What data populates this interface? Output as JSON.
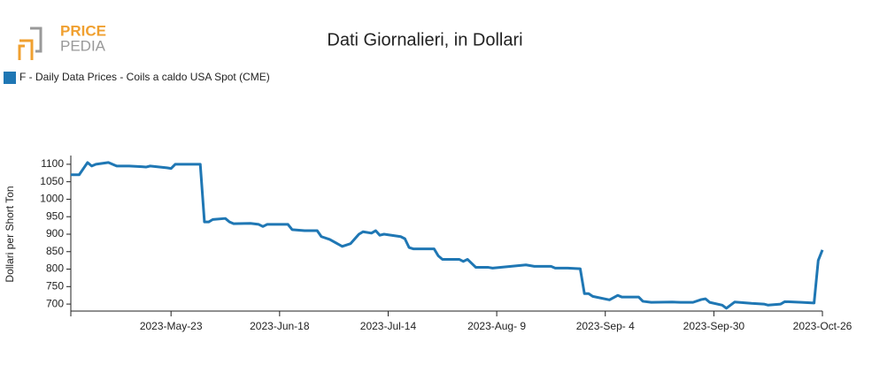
{
  "logo": {
    "top": "PRICE",
    "bottom": "PEDIA"
  },
  "chart_data": {
    "type": "line",
    "title": "Dati Giornalieri, in Dollari",
    "y_label": "Dollari per Short Ton",
    "x": [
      "2023-04-29",
      "2023-05-01",
      "2023-05-03",
      "2023-05-04",
      "2023-05-05",
      "2023-05-08",
      "2023-05-10",
      "2023-05-13",
      "2023-05-16",
      "2023-05-17",
      "2023-05-18",
      "2023-05-22",
      "2023-05-23",
      "2023-05-24",
      "2023-05-30",
      "2023-05-31",
      "2023-06-01",
      "2023-06-02",
      "2023-06-05",
      "2023-06-06",
      "2023-06-07",
      "2023-06-11",
      "2023-06-13",
      "2023-06-14",
      "2023-06-15",
      "2023-06-20",
      "2023-06-21",
      "2023-06-24",
      "2023-06-27",
      "2023-06-28",
      "2023-06-30",
      "2023-07-03",
      "2023-07-05",
      "2023-07-07",
      "2023-07-08",
      "2023-07-10",
      "2023-07-11",
      "2023-07-12",
      "2023-07-13",
      "2023-07-17",
      "2023-07-18",
      "2023-07-19",
      "2023-07-20",
      "2023-07-25",
      "2023-07-26",
      "2023-07-27",
      "2023-07-31",
      "2023-08-01",
      "2023-08-02",
      "2023-08-04",
      "2023-08-07",
      "2023-08-08",
      "2023-08-16",
      "2023-08-18",
      "2023-08-22",
      "2023-08-23",
      "2023-08-26",
      "2023-08-29",
      "2023-08-30",
      "2023-08-31",
      "2023-09-01",
      "2023-09-05",
      "2023-09-07",
      "2023-09-08",
      "2023-09-12",
      "2023-09-13",
      "2023-09-15",
      "2023-09-20",
      "2023-09-22",
      "2023-09-25",
      "2023-09-27",
      "2023-09-28",
      "2023-09-29",
      "2023-10-02",
      "2023-10-03",
      "2023-10-05",
      "2023-10-09",
      "2023-10-12",
      "2023-10-13",
      "2023-10-16",
      "2023-10-17",
      "2023-10-21",
      "2023-10-24",
      "2023-10-25",
      "2023-10-26"
    ],
    "series": [
      {
        "name": "F - Daily Data Prices - Coils a caldo USA Spot (CME)",
        "color": "#1f77b4",
        "values": [
          1070,
          1070,
          1105,
          1095,
          1100,
          1105,
          1095,
          1095,
          1093,
          1092,
          1095,
          1090,
          1088,
          1100,
          1100,
          935,
          935,
          942,
          945,
          935,
          930,
          931,
          928,
          922,
          928,
          928,
          913,
          910,
          910,
          893,
          885,
          865,
          873,
          900,
          907,
          903,
          910,
          897,
          900,
          893,
          887,
          862,
          858,
          858,
          838,
          828,
          828,
          822,
          828,
          805,
          805,
          803,
          812,
          808,
          808,
          803,
          803,
          801,
          730,
          730,
          722,
          712,
          725,
          720,
          720,
          708,
          705,
          706,
          705,
          705,
          713,
          715,
          705,
          697,
          688,
          706,
          702,
          700,
          697,
          700,
          707,
          705,
          703,
          825,
          855
        ]
      }
    ],
    "xlim": [
      "2023-04-29",
      "2023-10-26"
    ],
    "xticks": [
      {
        "value": "2023-05-23",
        "label": "2023-May-23"
      },
      {
        "value": "2023-06-18",
        "label": "2023-Jun-18"
      },
      {
        "value": "2023-07-14",
        "label": "2023-Jul-14"
      },
      {
        "value": "2023-08-09",
        "label": "2023-Aug- 9"
      },
      {
        "value": "2023-09-04",
        "label": "2023-Sep- 4"
      },
      {
        "value": "2023-09-30",
        "label": "2023-Sep-30"
      },
      {
        "value": "2023-10-26",
        "label": "2023-Oct-26"
      }
    ],
    "ylim": [
      680,
      1125
    ],
    "yticks": [
      700,
      750,
      800,
      850,
      900,
      950,
      1000,
      1050,
      1100
    ]
  }
}
